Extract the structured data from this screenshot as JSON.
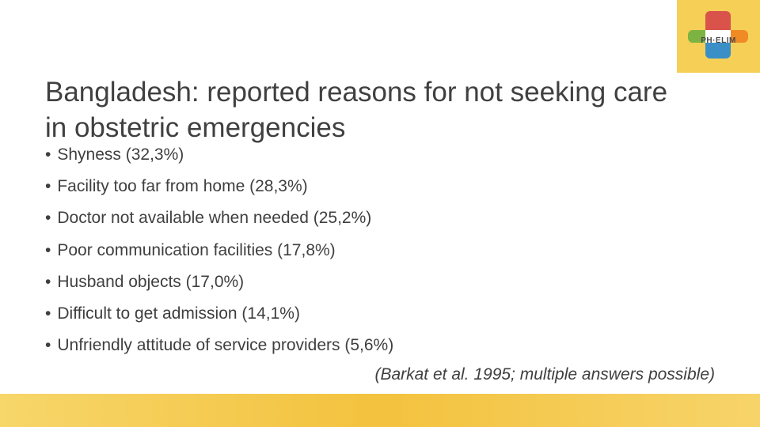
{
  "logo": {
    "text": "PH·ELIM"
  },
  "title": "Bangladesh: reported reasons for not seeking care in obstetric emergencies",
  "bullets": [
    "Shyness (32,3%)",
    "Facility too far from home (28,3%)",
    "Doctor not available when needed (25,2%)",
    "Poor communication facilities (17,8%)",
    "Husband objects (17,0%)",
    "Difficult to get admission (14,1%)",
    "Unfriendly attitude of service providers (5,6%)"
  ],
  "citation": "(Barkat et al. 1995; multiple answers possible)"
}
